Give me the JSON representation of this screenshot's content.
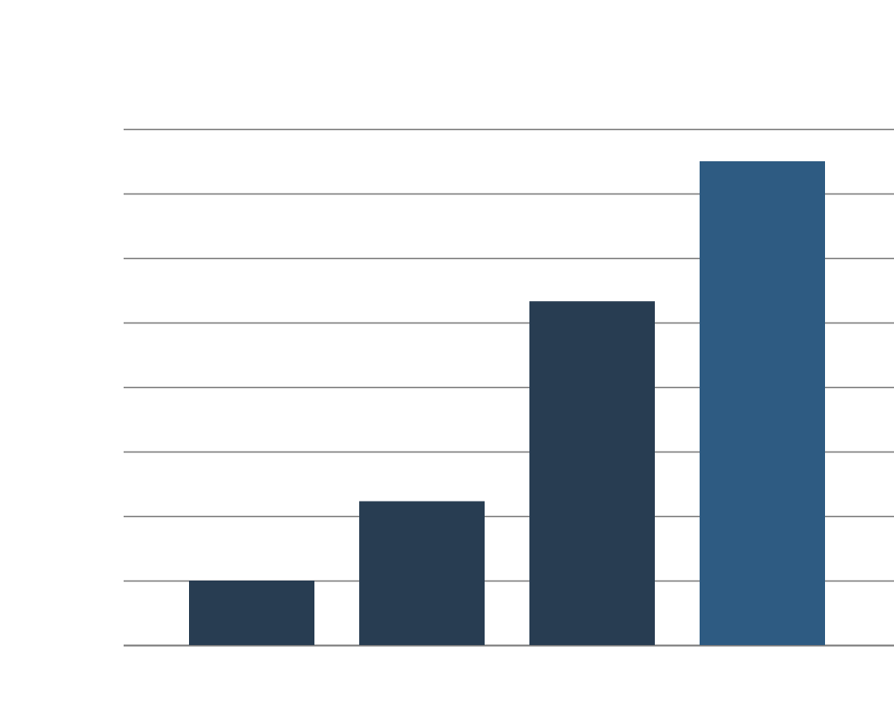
{
  "chart_data": {
    "type": "bar",
    "categories": [
      "",
      "",
      "",
      ""
    ],
    "values": [
      1,
      2.23,
      5.33,
      7.5
    ],
    "title": "",
    "xlabel": "",
    "ylabel": "",
    "ylim": [
      0,
      8
    ],
    "grid": true,
    "legend": "none",
    "colors": {
      "bar": "#283d52",
      "highlight": "#2e5b82",
      "grid": "#7a7a7a",
      "background": "#ffffff"
    },
    "highlight_index": 3
  }
}
